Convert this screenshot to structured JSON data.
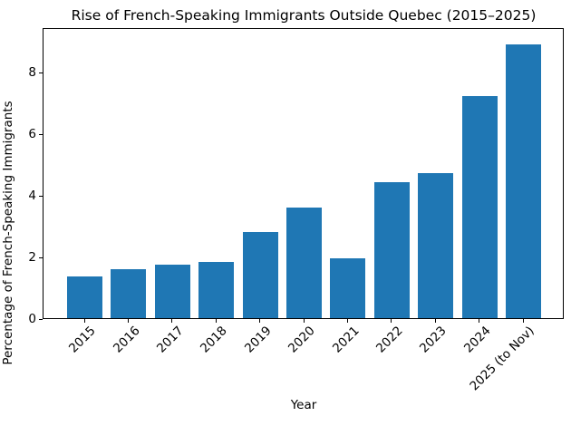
{
  "chart_data": {
    "type": "bar",
    "title": "Rise of French-Speaking Immigrants Outside Quebec (2015–2025)",
    "xlabel": "Year",
    "ylabel": "Percentage of French-Speaking Immigrants",
    "categories": [
      "2015",
      "2016",
      "2017",
      "2018",
      "2019",
      "2020",
      "2021",
      "2022",
      "2023",
      "2024",
      "2025 (to Nov)"
    ],
    "values": [
      1.35,
      1.6,
      1.75,
      1.82,
      2.8,
      3.6,
      1.95,
      4.43,
      4.7,
      7.2,
      8.9
    ],
    "bar_color": "#1f77b4",
    "axis_color": "#000000",
    "background_color": "#ffffff",
    "yticks": [
      0,
      2,
      4,
      6,
      8
    ],
    "ylim": [
      0,
      9.45
    ],
    "grid": false,
    "legend": "none",
    "x_tick_rotation_deg": 45
  }
}
